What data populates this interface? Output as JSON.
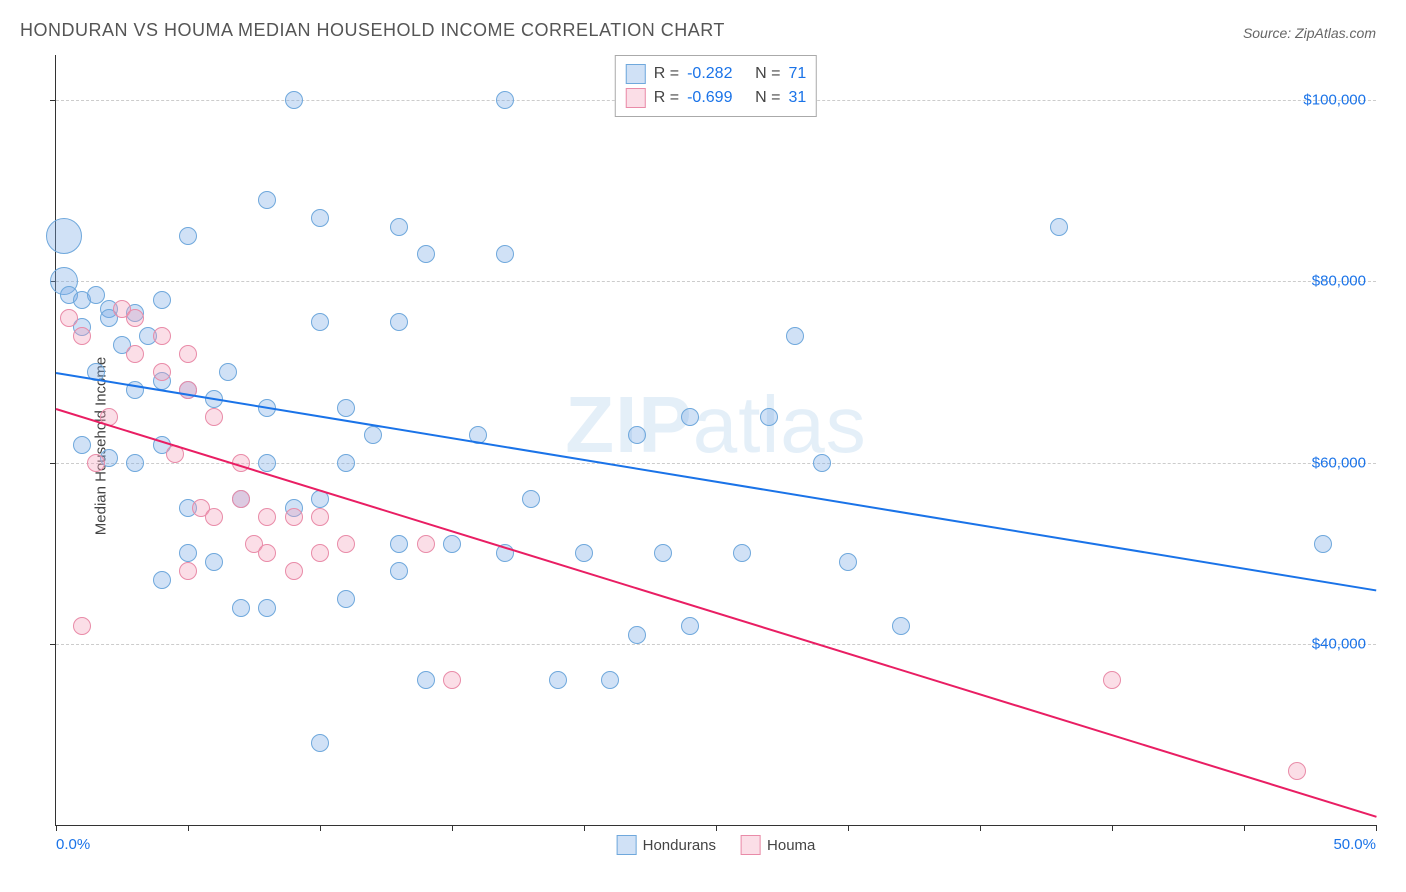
{
  "title": "HONDURAN VS HOUMA MEDIAN HOUSEHOLD INCOME CORRELATION CHART",
  "source_label": "Source: ",
  "source_name": "ZipAtlas.com",
  "ylabel": "Median Household Income",
  "watermark_bold": "ZIP",
  "watermark_light": "atlas",
  "chart": {
    "type": "scatter_with_trend",
    "xlim": [
      0,
      50
    ],
    "ylim": [
      20000,
      105000
    ],
    "x_axis_color": "#1a73e8",
    "y_axis_color": "#1a73e8",
    "grid_color": "#cccccc",
    "background": "#ffffff",
    "x_ticks": [
      0,
      5,
      10,
      15,
      20,
      25,
      30,
      35,
      40,
      45,
      50
    ],
    "x_tick_labels": {
      "0": "0.0%",
      "50": "50.0%"
    },
    "y_ticks": [
      40000,
      60000,
      80000,
      100000
    ],
    "y_tick_labels": {
      "40000": "$40,000",
      "60000": "$60,000",
      "80000": "$80,000",
      "100000": "$100,000"
    },
    "series": [
      {
        "name": "Hondurans",
        "label": "Hondurans",
        "R": "-0.282",
        "N": "71",
        "fill": "rgba(120,170,230,0.35)",
        "stroke": "#6fa8dc",
        "trend_color": "#1a73e8",
        "trend": {
          "x1": 0,
          "y1": 70000,
          "x2": 50,
          "y2": 46000
        },
        "marker_radius": 9,
        "points": [
          [
            0.3,
            85000,
            18
          ],
          [
            0.3,
            80000,
            14
          ],
          [
            0.5,
            78500
          ],
          [
            1,
            78000
          ],
          [
            1.5,
            78500
          ],
          [
            2,
            77000
          ],
          [
            1,
            75000
          ],
          [
            2,
            76000
          ],
          [
            3,
            76500
          ],
          [
            4,
            78000
          ],
          [
            2.5,
            73000
          ],
          [
            3.5,
            74000
          ],
          [
            1.5,
            70000
          ],
          [
            5,
            85000
          ],
          [
            8,
            89000
          ],
          [
            9,
            100000
          ],
          [
            10,
            87000
          ],
          [
            13,
            86000
          ],
          [
            17,
            100000
          ],
          [
            10,
            75500
          ],
          [
            13,
            75500
          ],
          [
            14,
            83000
          ],
          [
            17,
            83000
          ],
          [
            3,
            68000
          ],
          [
            4,
            69000
          ],
          [
            5,
            68000
          ],
          [
            6,
            67000
          ],
          [
            6.5,
            70000
          ],
          [
            8,
            66000
          ],
          [
            11,
            66000
          ],
          [
            1,
            62000
          ],
          [
            2,
            60500
          ],
          [
            3,
            60000
          ],
          [
            4,
            62000
          ],
          [
            5,
            55000
          ],
          [
            6,
            49000
          ],
          [
            7,
            56000
          ],
          [
            8,
            60000
          ],
          [
            9,
            55000
          ],
          [
            10,
            56000
          ],
          [
            11,
            60000
          ],
          [
            12,
            63000
          ],
          [
            13,
            48000
          ],
          [
            13,
            51000
          ],
          [
            14,
            36000
          ],
          [
            15,
            51000
          ],
          [
            16,
            63000
          ],
          [
            17,
            50000
          ],
          [
            18,
            56000
          ],
          [
            19,
            36000
          ],
          [
            20,
            50000
          ],
          [
            21,
            36000
          ],
          [
            22,
            41000
          ],
          [
            22,
            63000
          ],
          [
            23,
            50000
          ],
          [
            24,
            42000
          ],
          [
            24,
            65000
          ],
          [
            26,
            50000
          ],
          [
            27,
            65000
          ],
          [
            28,
            74000
          ],
          [
            29,
            60000
          ],
          [
            30,
            49000
          ],
          [
            32,
            42000
          ],
          [
            38,
            86000
          ],
          [
            48,
            51000
          ],
          [
            10,
            29000
          ],
          [
            4,
            47000
          ],
          [
            5,
            50000
          ],
          [
            7,
            44000
          ],
          [
            8,
            44000
          ],
          [
            11,
            45000
          ]
        ]
      },
      {
        "name": "Houma",
        "label": "Houma",
        "R": "-0.699",
        "N": "31",
        "fill": "rgba(244,160,185,0.35)",
        "stroke": "#e98ba8",
        "trend_color": "#e91e63",
        "trend": {
          "x1": 0,
          "y1": 66000,
          "x2": 50,
          "y2": 21000
        },
        "marker_radius": 9,
        "points": [
          [
            0.5,
            76000
          ],
          [
            1,
            74000
          ],
          [
            1.5,
            60000
          ],
          [
            2,
            65000
          ],
          [
            2.5,
            77000
          ],
          [
            3,
            72000
          ],
          [
            3,
            76000
          ],
          [
            4,
            74000
          ],
          [
            4,
            70000
          ],
          [
            4.5,
            61000
          ],
          [
            5,
            72000
          ],
          [
            5,
            68000
          ],
          [
            5.5,
            55000
          ],
          [
            6,
            65000
          ],
          [
            6,
            54000
          ],
          [
            7,
            56000
          ],
          [
            7,
            60000
          ],
          [
            7.5,
            51000
          ],
          [
            8,
            54000
          ],
          [
            8,
            50000
          ],
          [
            9,
            54000
          ],
          [
            9,
            48000
          ],
          [
            10,
            50000
          ],
          [
            10,
            54000
          ],
          [
            11,
            51000
          ],
          [
            14,
            51000
          ],
          [
            15,
            36000
          ],
          [
            1,
            42000
          ],
          [
            5,
            48000
          ],
          [
            40,
            36000
          ],
          [
            47,
            26000
          ]
        ]
      }
    ],
    "legend_top": {
      "R_label": "R =",
      "N_label": "N =",
      "text_color": "#444444",
      "value_color": "#1a73e8"
    }
  }
}
